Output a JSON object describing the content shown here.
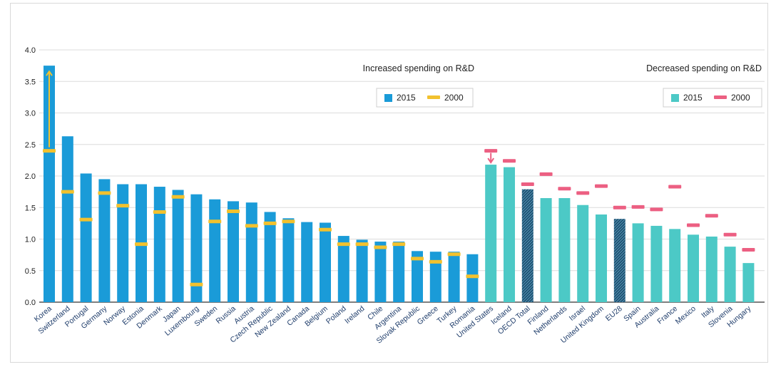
{
  "chart_data": {
    "type": "bar",
    "ylim": [
      0,
      4.0
    ],
    "yticks": [
      "0.0",
      "0.5",
      "1.0",
      "1.5",
      "2.0",
      "2.5",
      "3.0",
      "3.5",
      "4.0"
    ],
    "grid": true,
    "categories": [
      "Korea",
      "Switzerland",
      "Portugal",
      "Germany",
      "Norway",
      "Estonia",
      "Denmark",
      "Japan",
      "Luxembourg",
      "Sweden",
      "Russia",
      "Austria",
      "Czech Republic",
      "New Zealand",
      "Canada",
      "Belgium",
      "Poland",
      "Ireland",
      "Chile",
      "Argentina",
      "Slovak Republic",
      "Greece",
      "Turkey",
      "Romania",
      "United States",
      "Iceland",
      "OECD Total",
      "Finland",
      "Netherlands",
      "Israel",
      "United Kingdom",
      "EU28",
      "Spain",
      "Australia",
      "France",
      "Mexico",
      "Italy",
      "Slovenia",
      "Hungary"
    ],
    "series": [
      {
        "name": "2015",
        "values": [
          3.75,
          2.63,
          2.04,
          1.95,
          1.87,
          1.87,
          1.83,
          1.78,
          1.71,
          1.63,
          1.6,
          1.58,
          1.43,
          1.33,
          1.27,
          1.26,
          1.05,
          0.99,
          0.96,
          0.96,
          0.81,
          0.8,
          0.8,
          0.76,
          2.18,
          2.14,
          1.79,
          1.65,
          1.65,
          1.54,
          1.39,
          1.32,
          1.25,
          1.21,
          1.16,
          1.07,
          1.04,
          0.88,
          0.62
        ]
      },
      {
        "name": "2000",
        "values": [
          2.4,
          1.75,
          1.31,
          1.73,
          1.53,
          0.92,
          1.43,
          1.67,
          0.28,
          1.28,
          1.44,
          1.21,
          1.25,
          1.28,
          null,
          1.15,
          0.92,
          0.92,
          0.87,
          0.92,
          0.69,
          0.64,
          0.76,
          0.41,
          2.4,
          2.24,
          1.87,
          2.03,
          1.8,
          1.73,
          1.84,
          1.5,
          1.51,
          1.47,
          1.83,
          1.22,
          1.37,
          1.07,
          0.83
        ]
      }
    ],
    "groups": [
      {
        "title": "Increased spending on R&D",
        "start": 0,
        "end": 23,
        "bar_color": "#1a9bd8",
        "marker_color": "#f2c12e",
        "legend": [
          "2015",
          "2000"
        ]
      },
      {
        "title": "Decreased spending on R&D",
        "start": 24,
        "end": 38,
        "bar_color": "#4cc9c6",
        "marker_color": "#ec5f82",
        "legend": [
          "2015",
          "2000"
        ]
      }
    ],
    "hatched": [
      "OECD Total",
      "EU28"
    ],
    "hatch_color": "#1b4f6f",
    "arrows": [
      {
        "category": "Korea",
        "from": 2.4,
        "to": 3.75,
        "color": "#f2c12e"
      },
      {
        "category": "United States",
        "from": 2.4,
        "to": 2.18,
        "color": "#ec5f82"
      }
    ],
    "text_color": "#1f3d6b"
  }
}
